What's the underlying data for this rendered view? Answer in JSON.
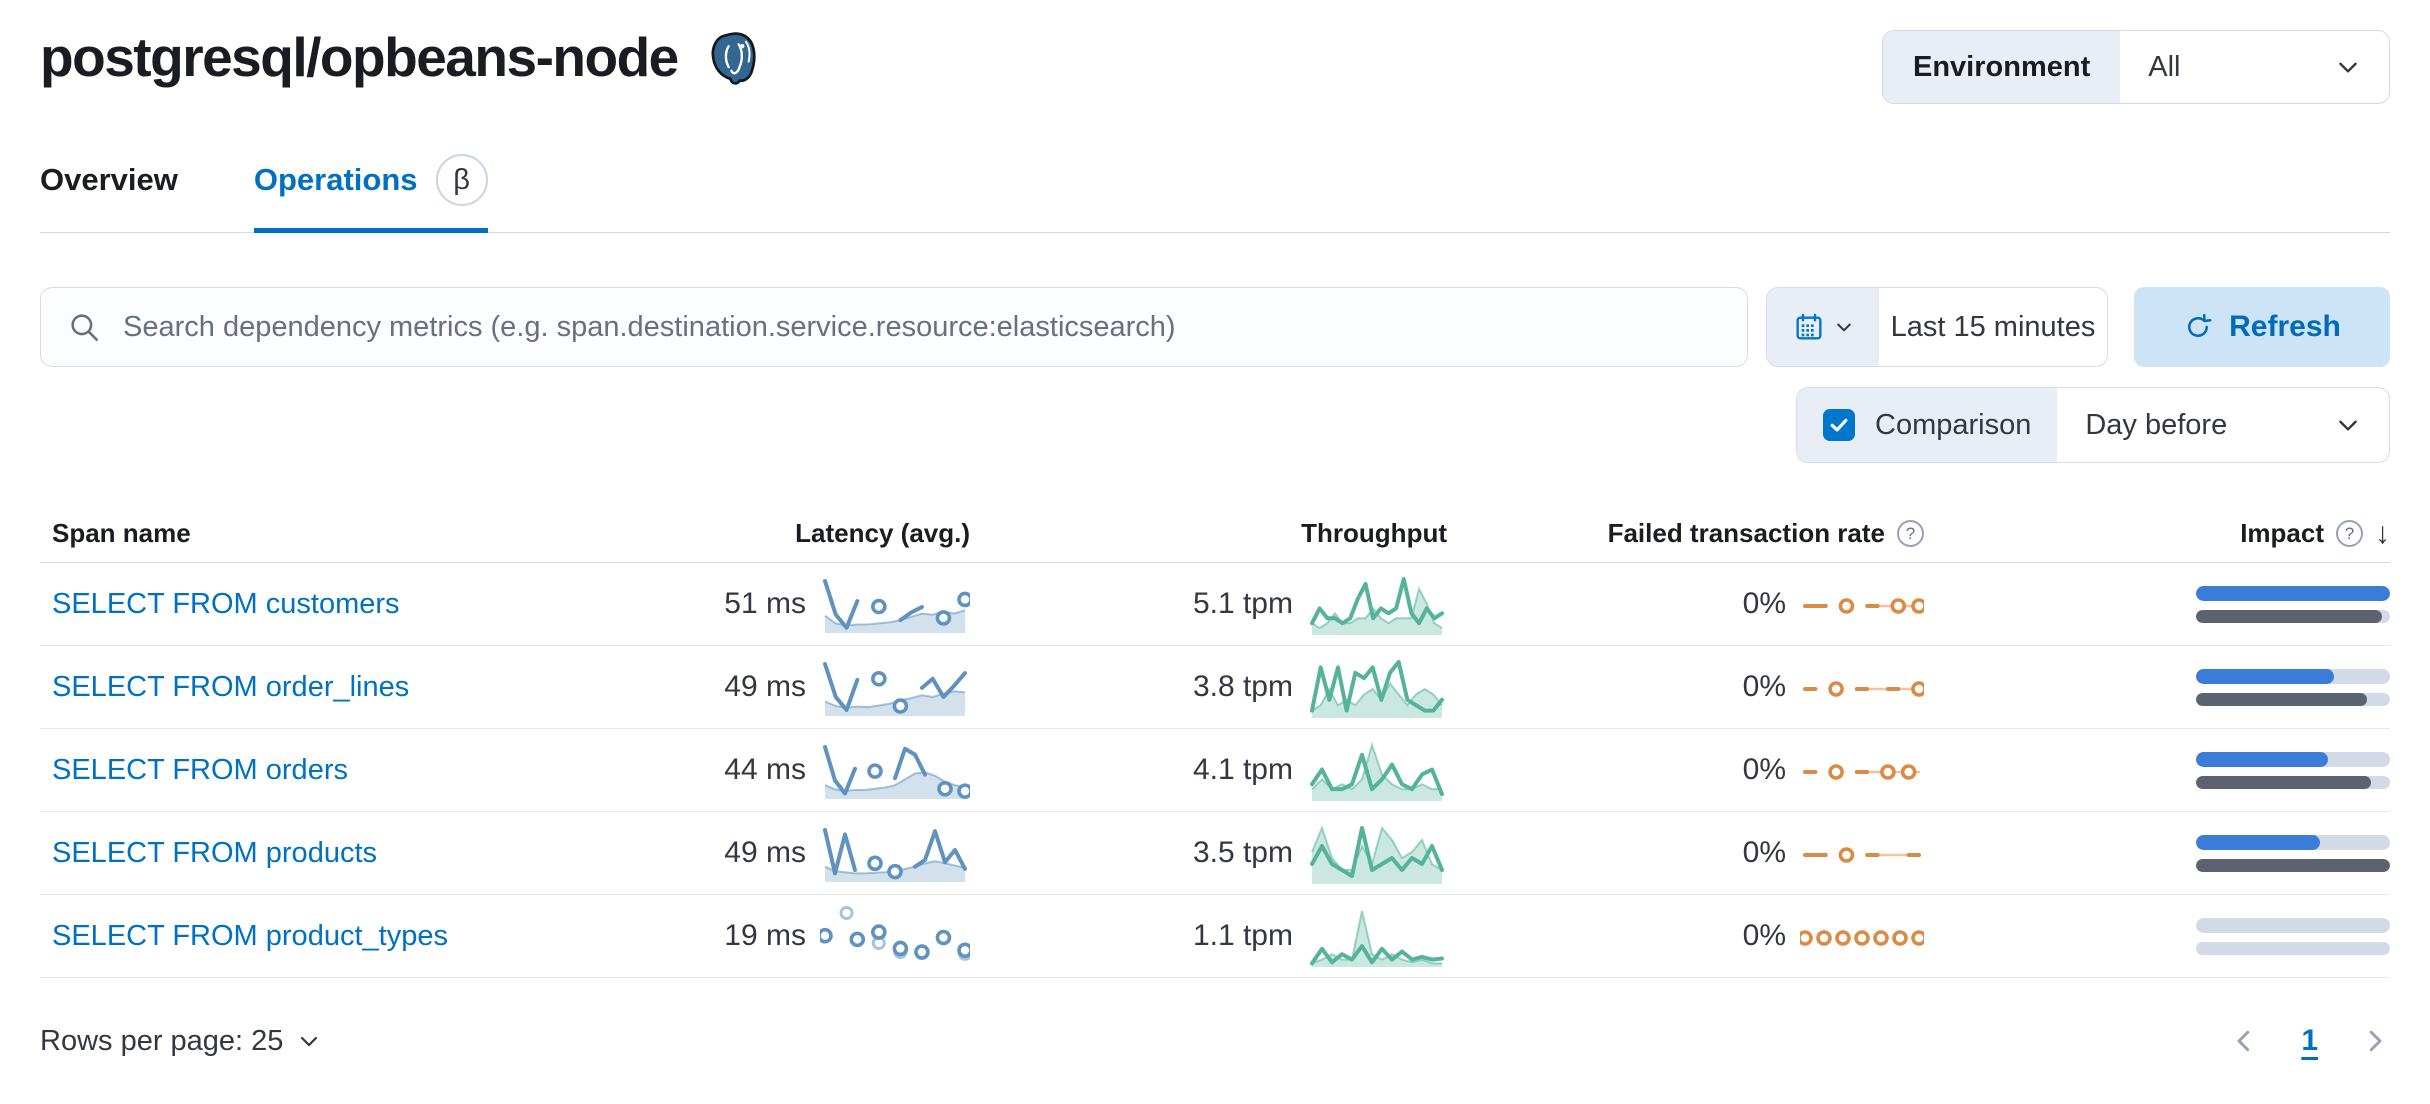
{
  "header": {
    "title": "postgresql/opbeans-node",
    "icon": "postgresql-elephant"
  },
  "environment": {
    "label": "Environment",
    "value": "All"
  },
  "tabs": [
    {
      "label": "Overview",
      "active": false
    },
    {
      "label": "Operations",
      "active": true,
      "beta": "β"
    }
  ],
  "search": {
    "placeholder": "Search dependency metrics (e.g. span.destination.service.resource:elasticsearch)"
  },
  "time_picker": {
    "value": "Last 15 minutes"
  },
  "refresh": {
    "label": "Refresh"
  },
  "comparison": {
    "label": "Comparison",
    "checked": true,
    "value": "Day before"
  },
  "table": {
    "columns": {
      "span_name": "Span name",
      "latency": "Latency (avg.)",
      "throughput": "Throughput",
      "failed_rate": "Failed transaction rate",
      "impact": "Impact"
    },
    "sorted_by": "Impact",
    "sort_direction": "desc",
    "rows": [
      {
        "span_name": "SELECT FROM customers",
        "latency": "51 ms",
        "throughput": "5.1 tpm",
        "failed_rate": "0%",
        "impact_current_pct": 100,
        "impact_previous_pct": 96,
        "sparklines": {
          "latency": {
            "cmode": "area",
            "current": [
              92,
              30,
              6,
              55,
              null,
              45,
              null,
              20,
              34,
              44,
              null,
              24,
              null,
              58
            ],
            "comparison": [
              28,
              14,
              10,
              12,
              12,
              14,
              16,
              20,
              26,
              32,
              30,
              36,
              32,
              38
            ]
          },
          "throughput": {
            "cmode": "area",
            "current": [
              2,
              5,
              3,
              3,
              2,
              3,
              7,
              10,
              3,
              5,
              4,
              5,
              11,
              4,
              2,
              5,
              3,
              4
            ],
            "comparison": [
              2,
              1,
              2,
              4,
              2,
              2,
              3,
              3,
              5,
              3,
              2,
              3,
              3,
              3,
              9,
              6,
              2,
              1
            ]
          },
          "failed_rate": {
            "cmode": "line",
            "ymax": 100,
            "current": [
              50,
              50,
              50,
              null,
              50,
              null,
              50,
              50,
              null,
              50,
              null,
              50
            ],
            "comparison": [
              null,
              null,
              null,
              null,
              null,
              null,
              50,
              50,
              50,
              50,
              50,
              50
            ]
          }
        }
      },
      {
        "span_name": "SELECT FROM order_lines",
        "latency": "49 ms",
        "throughput": "3.8 tpm",
        "failed_rate": "0%",
        "impact_current_pct": 71,
        "impact_previous_pct": 88,
        "sparklines": {
          "latency": {
            "cmode": "area",
            "current": [
              88,
              30,
              7,
              60,
              null,
              62,
              null,
              14,
              null,
              46,
              62,
              30,
              50,
              72
            ],
            "comparison": [
              22,
              14,
              11,
              13,
              12,
              15,
              18,
              24,
              28,
              33,
              30,
              36,
              40,
              38
            ]
          },
          "throughput": {
            "cmode": "area",
            "current": [
              1,
              9,
              3,
              9,
              1,
              8,
              7,
              9,
              3,
              8,
              10,
              3,
              2,
              1,
              1,
              3
            ],
            "comparison": [
              1,
              2,
              5,
              2,
              3,
              2,
              4,
              5,
              3,
              6,
              4,
              2,
              4,
              5,
              4,
              2
            ]
          },
          "failed_rate": {
            "cmode": "line",
            "ymax": 100,
            "current": [
              50,
              50,
              null,
              50,
              null,
              50,
              50,
              null,
              50,
              50,
              null,
              50
            ],
            "comparison": [
              null,
              null,
              null,
              null,
              null,
              50,
              50,
              50,
              50,
              50,
              50,
              50
            ]
          }
        }
      },
      {
        "span_name": "SELECT FROM orders",
        "latency": "44 ms",
        "throughput": "4.1 tpm",
        "failed_rate": "0%",
        "impact_current_pct": 68,
        "impact_previous_pct": 90,
        "sparklines": {
          "latency": {
            "cmode": "area",
            "current": [
              85,
              28,
              6,
              48,
              null,
              44,
              null,
              32,
              82,
              72,
              38,
              null,
              14,
              null,
              10
            ],
            "comparison": [
              20,
              13,
              10,
              12,
              12,
              14,
              16,
              20,
              30,
              40,
              42,
              36,
              26,
              20,
              16
            ]
          },
          "throughput": {
            "cmode": "area",
            "current": [
              3,
              6,
              2,
              2,
              3,
              9,
              2,
              4,
              7,
              3,
              2,
              5,
              6,
              1
            ],
            "comparison": [
              2,
              4,
              2,
              3,
              2,
              4,
              11,
              5,
              3,
              2,
              2,
              3,
              2,
              2
            ]
          },
          "failed_rate": {
            "cmode": "line",
            "ymax": 100,
            "current": [
              50,
              50,
              null,
              50,
              null,
              50,
              50,
              null,
              50,
              null,
              50,
              null
            ],
            "comparison": [
              null,
              null,
              null,
              null,
              null,
              50,
              50,
              50,
              50,
              50,
              50,
              50
            ]
          }
        }
      },
      {
        "span_name": "SELECT FROM products",
        "latency": "49 ms",
        "throughput": "3.5 tpm",
        "failed_rate": "0%",
        "impact_current_pct": 64,
        "impact_previous_pct": 100,
        "sparklines": {
          "latency": {
            "cmode": "area",
            "current": [
              90,
              12,
              82,
              18,
              null,
              30,
              null,
              15,
              null,
              24,
              36,
              88,
              32,
              54,
              20
            ],
            "comparison": [
              24,
              16,
              14,
              12,
              12,
              13,
              14,
              16,
              20,
              24,
              30,
              34,
              30,
              26,
              22
            ]
          },
          "throughput": {
            "cmode": "area",
            "current": [
              3,
              6,
              3,
              2,
              1,
              9,
              2,
              3,
              4,
              2,
              4,
              3,
              6,
              2
            ],
            "comparison": [
              5,
              9,
              4,
              2,
              2,
              6,
              3,
              9,
              7,
              4,
              5,
              7,
              3,
              2
            ]
          },
          "failed_rate": {
            "cmode": "line",
            "ymax": 100,
            "current": [
              50,
              50,
              50,
              null,
              50,
              null,
              50,
              50,
              null,
              null,
              50,
              50
            ],
            "comparison": [
              null,
              null,
              null,
              null,
              null,
              null,
              50,
              50,
              50,
              50,
              50,
              50
            ]
          }
        }
      },
      {
        "span_name": "SELECT FROM product_types",
        "latency": "19 ms",
        "throughput": "1.1 tpm",
        "failed_rate": "0%",
        "impact_current_pct": 0,
        "impact_previous_pct": 0,
        "sparklines": {
          "latency": {
            "cmode": "points",
            "current": [
              30,
              null,
              null,
              26,
              null,
              34,
              null,
              16,
              null,
              12,
              null,
              28,
              null,
              14
            ],
            "comparison": [
              null,
              null,
              55,
              null,
              null,
              22,
              null,
              12,
              null,
              null,
              null,
              null,
              null,
              10
            ]
          },
          "throughput": {
            "cmode": "area",
            "current": [
              0.3,
              3,
              0.5,
              2,
              1,
              3.5,
              0.5,
              3,
              1,
              2.5,
              1,
              1.5,
              1,
              1.2
            ],
            "comparison": [
              0.3,
              1,
              2,
              1,
              1,
              10,
              2,
              1,
              2,
              1,
              0.5,
              1,
              0.3,
              0.3
            ]
          },
          "failed_rate": {
            "cmode": "line",
            "ymax": 100,
            "current": [
              50,
              null,
              50,
              null,
              50,
              null,
              50,
              null,
              50,
              null,
              50,
              null,
              50
            ],
            "comparison": null
          }
        }
      }
    ]
  },
  "footer": {
    "rows_per_page": "Rows per page: 25",
    "page": "1"
  },
  "colors": {
    "link": "#0071c2",
    "primary": "#0077cc",
    "refresh_text": "#006bb8",
    "impact_current": "#3b7cd9",
    "impact_previous": "#5d636e",
    "impact_track": "#d3dae6",
    "spark_latency": "#6092c0",
    "spark_latency_fill": "rgba(96,146,192,0.28)",
    "spark_latency_light": "rgba(96,146,192,0.55)",
    "spark_throughput": "#54b399",
    "spark_throughput_fill": "rgba(84,179,153,0.30)",
    "spark_throughput_light": "rgba(84,179,153,0.55)",
    "spark_failed": "#da8b45",
    "spark_failed_light": "rgba(218,139,69,0.5)"
  }
}
